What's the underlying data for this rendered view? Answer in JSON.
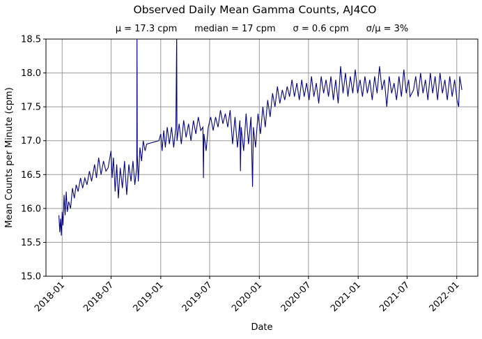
{
  "chart_data": {
    "type": "line",
    "title": "Observed Daily Mean Gamma Counts, AJ4CO",
    "subtitle": "μ = 17.3 cpm      median = 17 cpm      σ = 0.6 cpm      σ/μ = 3%",
    "xlabel": "Date",
    "ylabel": "Mean Counts per Minute (cpm)",
    "xlim": [
      "2017-11-02",
      "2022-03-20"
    ],
    "ylim": [
      15.0,
      18.5
    ],
    "grid": true,
    "color": "#000080",
    "x_ticks": [
      "2018-01",
      "2018-07",
      "2019-01",
      "2019-07",
      "2020-01",
      "2020-07",
      "2021-01",
      "2021-07",
      "2022-01"
    ],
    "y_ticks": [
      "15.0",
      "15.5",
      "16.0",
      "16.5",
      "17.0",
      "17.5",
      "18.0",
      "18.5"
    ],
    "points": [
      [
        "2017-12-20",
        15.9
      ],
      [
        "2017-12-23",
        15.65
      ],
      [
        "2017-12-26",
        15.85
      ],
      [
        "2017-12-29",
        15.6
      ],
      [
        "2018-01-01",
        15.95
      ],
      [
        "2018-01-04",
        15.75
      ],
      [
        "2018-01-08",
        16.2
      ],
      [
        "2018-01-12",
        15.9
      ],
      [
        "2018-01-16",
        16.25
      ],
      [
        "2018-01-20",
        15.95
      ],
      [
        "2018-01-25",
        16.1
      ],
      [
        "2018-02-01",
        16.0
      ],
      [
        "2018-02-08",
        16.3
      ],
      [
        "2018-02-15",
        16.15
      ],
      [
        "2018-02-22",
        16.35
      ],
      [
        "2018-03-01",
        16.25
      ],
      [
        "2018-03-10",
        16.45
      ],
      [
        "2018-03-18",
        16.3
      ],
      [
        "2018-03-26",
        16.45
      ],
      [
        "2018-04-03",
        16.35
      ],
      [
        "2018-04-12",
        16.55
      ],
      [
        "2018-04-20",
        16.4
      ],
      [
        "2018-05-01",
        16.65
      ],
      [
        "2018-05-08",
        16.45
      ],
      [
        "2018-05-16",
        16.75
      ],
      [
        "2018-05-25",
        16.5
      ],
      [
        "2018-06-03",
        16.7
      ],
      [
        "2018-06-12",
        16.55
      ],
      [
        "2018-06-20",
        16.6
      ],
      [
        "2018-07-01",
        16.85
      ],
      [
        "2018-07-05",
        16.45
      ],
      [
        "2018-07-10",
        16.75
      ],
      [
        "2018-07-16",
        16.25
      ],
      [
        "2018-07-22",
        16.65
      ],
      [
        "2018-07-28",
        16.15
      ],
      [
        "2018-08-04",
        16.6
      ],
      [
        "2018-08-12",
        16.3
      ],
      [
        "2018-08-20",
        16.7
      ],
      [
        "2018-08-28",
        16.2
      ],
      [
        "2018-09-05",
        16.65
      ],
      [
        "2018-09-13",
        16.4
      ],
      [
        "2018-09-20",
        16.7
      ],
      [
        "2018-09-27",
        16.35
      ],
      [
        "2018-10-04",
        16.6
      ],
      [
        "2018-10-05",
        18.6
      ],
      [
        "2018-10-06",
        16.8
      ],
      [
        "2018-10-10",
        16.4
      ],
      [
        "2018-10-16",
        16.9
      ],
      [
        "2018-10-22",
        16.7
      ],
      [
        "2018-10-28",
        17.0
      ],
      [
        "2018-11-04",
        16.85
      ],
      [
        "2018-11-10",
        16.95
      ],
      [
        "2018-12-25",
        17.0
      ],
      [
        "2019-01-01",
        17.1
      ],
      [
        "2019-01-06",
        16.85
      ],
      [
        "2019-01-12",
        17.15
      ],
      [
        "2019-01-18",
        16.9
      ],
      [
        "2019-01-25",
        17.2
      ],
      [
        "2019-02-02",
        16.95
      ],
      [
        "2019-02-10",
        17.2
      ],
      [
        "2019-02-18",
        16.9
      ],
      [
        "2019-02-26",
        17.2
      ],
      [
        "2019-03-01",
        18.6
      ],
      [
        "2019-03-02",
        17.0
      ],
      [
        "2019-03-10",
        17.25
      ],
      [
        "2019-03-18",
        16.95
      ],
      [
        "2019-03-27",
        17.3
      ],
      [
        "2019-04-05",
        17.05
      ],
      [
        "2019-04-14",
        17.25
      ],
      [
        "2019-04-23",
        17.0
      ],
      [
        "2019-05-02",
        17.3
      ],
      [
        "2019-05-11",
        17.1
      ],
      [
        "2019-05-20",
        17.35
      ],
      [
        "2019-05-29",
        17.15
      ],
      [
        "2019-06-06",
        17.2
      ],
      [
        "2019-06-08",
        16.45
      ],
      [
        "2019-06-10",
        17.1
      ],
      [
        "2019-06-18",
        16.85
      ],
      [
        "2019-06-26",
        17.2
      ],
      [
        "2019-07-05",
        17.35
      ],
      [
        "2019-07-14",
        17.15
      ],
      [
        "2019-07-23",
        17.35
      ],
      [
        "2019-08-01",
        17.2
      ],
      [
        "2019-08-10",
        17.45
      ],
      [
        "2019-08-19",
        17.25
      ],
      [
        "2019-08-28",
        17.4
      ],
      [
        "2019-09-06",
        17.2
      ],
      [
        "2019-09-15",
        17.45
      ],
      [
        "2019-09-24",
        16.95
      ],
      [
        "2019-10-03",
        17.35
      ],
      [
        "2019-10-12",
        16.9
      ],
      [
        "2019-10-21",
        17.3
      ],
      [
        "2019-10-23",
        16.55
      ],
      [
        "2019-10-26",
        17.2
      ],
      [
        "2019-11-04",
        16.85
      ],
      [
        "2019-11-13",
        17.4
      ],
      [
        "2019-11-22",
        16.95
      ],
      [
        "2019-12-01",
        17.35
      ],
      [
        "2019-12-07",
        16.32
      ],
      [
        "2019-12-10",
        17.2
      ],
      [
        "2019-12-18",
        16.9
      ],
      [
        "2019-12-27",
        17.4
      ],
      [
        "2020-01-05",
        17.1
      ],
      [
        "2020-01-14",
        17.5
      ],
      [
        "2020-01-23",
        17.2
      ],
      [
        "2020-02-01",
        17.6
      ],
      [
        "2020-02-10",
        17.35
      ],
      [
        "2020-02-19",
        17.7
      ],
      [
        "2020-02-28",
        17.5
      ],
      [
        "2020-03-08",
        17.8
      ],
      [
        "2020-03-17",
        17.55
      ],
      [
        "2020-03-26",
        17.75
      ],
      [
        "2020-04-04",
        17.6
      ],
      [
        "2020-04-13",
        17.8
      ],
      [
        "2020-04-22",
        17.65
      ],
      [
        "2020-05-01",
        17.9
      ],
      [
        "2020-05-10",
        17.65
      ],
      [
        "2020-05-19",
        17.85
      ],
      [
        "2020-05-28",
        17.6
      ],
      [
        "2020-06-06",
        17.9
      ],
      [
        "2020-06-15",
        17.65
      ],
      [
        "2020-06-24",
        17.85
      ],
      [
        "2020-07-03",
        17.6
      ],
      [
        "2020-07-12",
        17.95
      ],
      [
        "2020-07-21",
        17.65
      ],
      [
        "2020-07-30",
        17.85
      ],
      [
        "2020-08-08",
        17.55
      ],
      [
        "2020-08-17",
        17.95
      ],
      [
        "2020-08-26",
        17.7
      ],
      [
        "2020-09-04",
        17.9
      ],
      [
        "2020-09-13",
        17.65
      ],
      [
        "2020-09-22",
        17.95
      ],
      [
        "2020-10-01",
        17.6
      ],
      [
        "2020-10-10",
        17.9
      ],
      [
        "2020-10-19",
        17.55
      ],
      [
        "2020-10-28",
        18.1
      ],
      [
        "2020-11-06",
        17.7
      ],
      [
        "2020-11-15",
        18.0
      ],
      [
        "2020-11-24",
        17.65
      ],
      [
        "2020-12-03",
        17.95
      ],
      [
        "2020-12-12",
        17.7
      ],
      [
        "2020-12-21",
        18.05
      ],
      [
        "2020-12-30",
        17.7
      ],
      [
        "2021-01-08",
        17.9
      ],
      [
        "2021-01-17",
        17.65
      ],
      [
        "2021-01-26",
        17.95
      ],
      [
        "2021-02-04",
        17.7
      ],
      [
        "2021-02-13",
        17.9
      ],
      [
        "2021-02-22",
        17.6
      ],
      [
        "2021-03-03",
        17.95
      ],
      [
        "2021-03-12",
        17.7
      ],
      [
        "2021-03-21",
        18.1
      ],
      [
        "2021-03-30",
        17.75
      ],
      [
        "2021-04-08",
        17.9
      ],
      [
        "2021-04-17",
        17.5
      ],
      [
        "2021-04-26",
        17.95
      ],
      [
        "2021-05-05",
        17.7
      ],
      [
        "2021-05-14",
        17.85
      ],
      [
        "2021-05-23",
        17.6
      ],
      [
        "2021-06-01",
        17.95
      ],
      [
        "2021-06-10",
        17.65
      ],
      [
        "2021-06-19",
        18.05
      ],
      [
        "2021-06-28",
        17.7
      ],
      [
        "2021-07-07",
        17.9
      ],
      [
        "2021-07-12",
        17.65
      ],
      [
        "2021-07-25",
        17.75
      ],
      [
        "2021-08-02",
        17.95
      ],
      [
        "2021-08-11",
        17.65
      ],
      [
        "2021-08-20",
        18.0
      ],
      [
        "2021-08-29",
        17.7
      ],
      [
        "2021-09-07",
        17.9
      ],
      [
        "2021-09-16",
        17.6
      ],
      [
        "2021-09-25",
        18.0
      ],
      [
        "2021-10-04",
        17.7
      ],
      [
        "2021-10-13",
        17.95
      ],
      [
        "2021-10-22",
        17.6
      ],
      [
        "2021-10-31",
        18.0
      ],
      [
        "2021-11-09",
        17.7
      ],
      [
        "2021-11-18",
        17.9
      ],
      [
        "2021-11-27",
        17.6
      ],
      [
        "2021-12-06",
        17.95
      ],
      [
        "2021-12-15",
        17.65
      ],
      [
        "2021-12-24",
        17.9
      ],
      [
        "2022-01-02",
        17.6
      ],
      [
        "2022-01-08",
        17.5
      ],
      [
        "2022-01-12",
        17.95
      ],
      [
        "2022-01-16",
        17.85
      ],
      [
        "2022-01-20",
        17.75
      ]
    ]
  }
}
